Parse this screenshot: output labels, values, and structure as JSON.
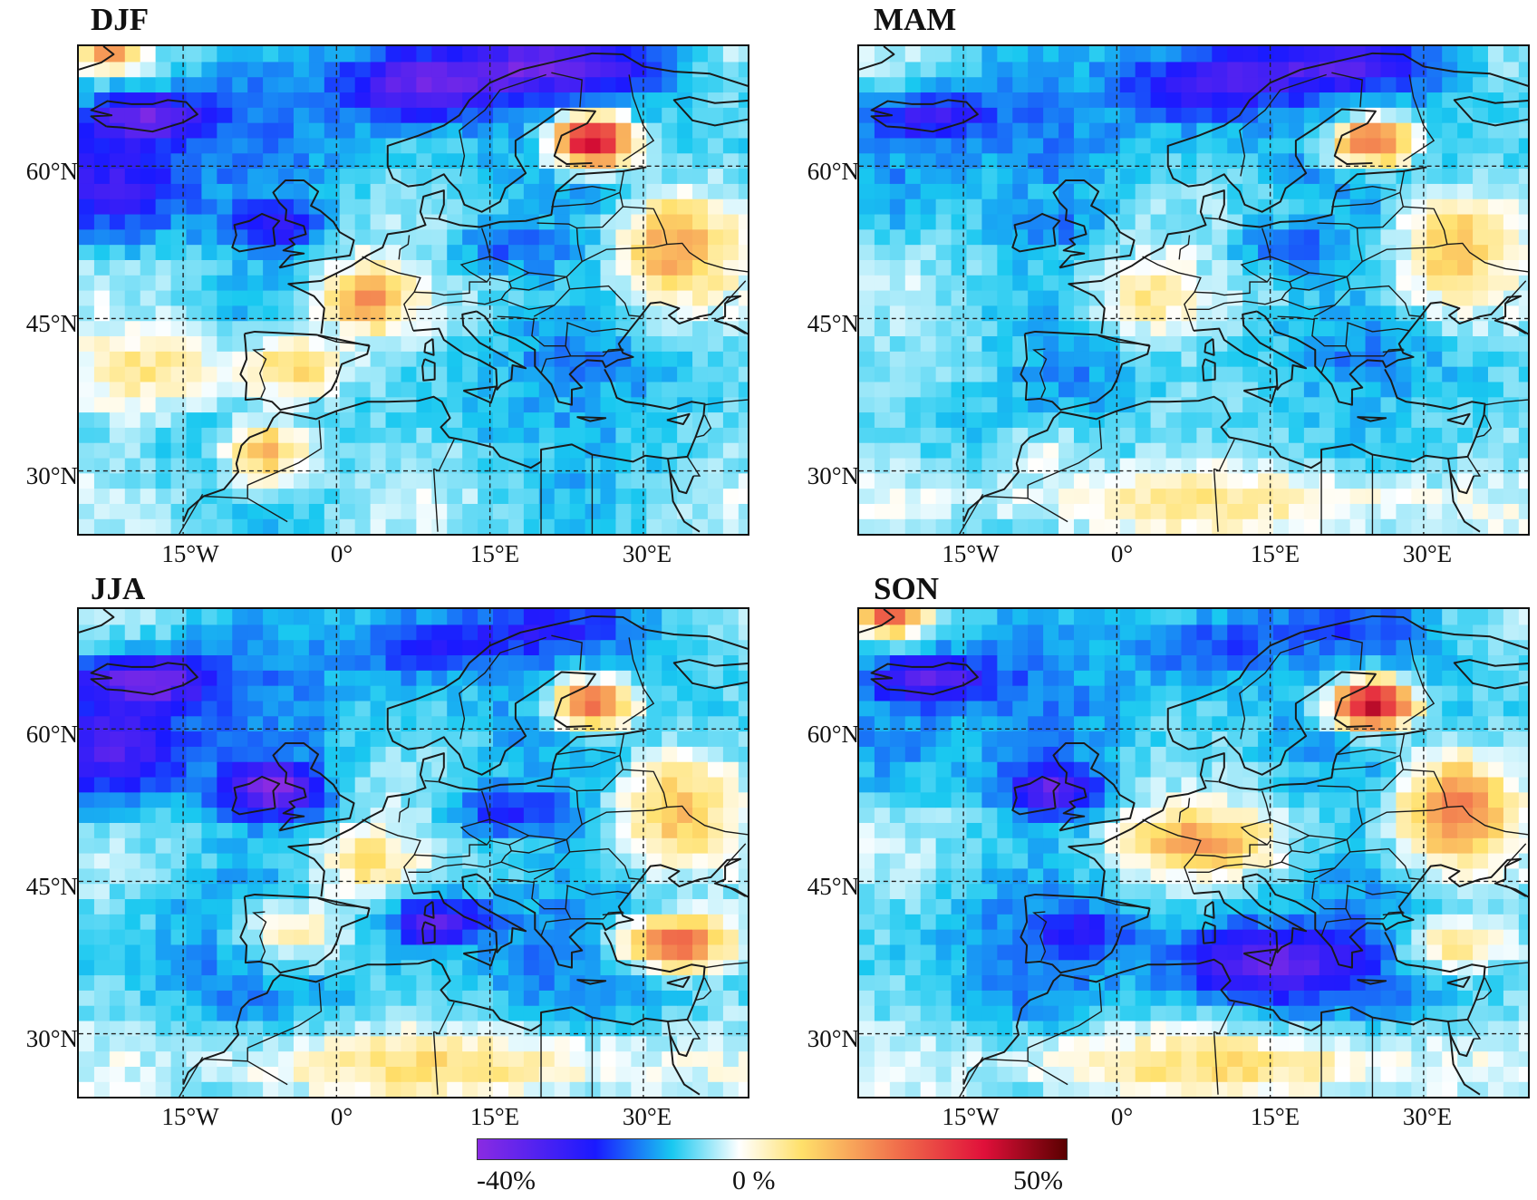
{
  "panels": [
    {
      "title": "DJF",
      "anomalies": [
        {
          "region": "north-sea-norway",
          "value": -30
        },
        {
          "region": "iceland",
          "value": -28
        },
        {
          "region": "north-atlantic-west",
          "value": -25
        },
        {
          "region": "ireland-uk",
          "value": -22
        },
        {
          "region": "finland",
          "value": 45
        },
        {
          "region": "russia-west",
          "value": 20
        },
        {
          "region": "france",
          "value": 22
        },
        {
          "region": "iberia",
          "value": 15
        },
        {
          "region": "morocco",
          "value": 18
        },
        {
          "region": "central-europe",
          "value": -15
        },
        {
          "region": "mediterranean",
          "value": -8
        },
        {
          "region": "subtropical-atlantic",
          "value": 10
        },
        {
          "region": "greenland-corner",
          "value": 20
        }
      ]
    },
    {
      "title": "MAM",
      "anomalies": [
        {
          "region": "north-sea-norway",
          "value": -25
        },
        {
          "region": "iceland",
          "value": -22
        },
        {
          "region": "north-atlantic-west",
          "value": -12
        },
        {
          "region": "ireland-uk",
          "value": -12
        },
        {
          "region": "finland",
          "value": 30
        },
        {
          "region": "russia-west",
          "value": 15
        },
        {
          "region": "france",
          "value": 10
        },
        {
          "region": "iberia",
          "value": -10
        },
        {
          "region": "morocco",
          "value": 2
        },
        {
          "region": "central-europe",
          "value": -15
        },
        {
          "region": "mediterranean",
          "value": -5
        },
        {
          "region": "subtropical-atlantic",
          "value": -3
        },
        {
          "region": "sahara",
          "value": 8
        }
      ]
    },
    {
      "title": "JJA",
      "anomalies": [
        {
          "region": "north-sea-norway",
          "value": -18
        },
        {
          "region": "iceland",
          "value": -30
        },
        {
          "region": "north-atlantic-west",
          "value": -28
        },
        {
          "region": "ireland-uk",
          "value": -35
        },
        {
          "region": "finland",
          "value": 30
        },
        {
          "region": "russia-west",
          "value": 15
        },
        {
          "region": "france",
          "value": 10
        },
        {
          "region": "iberia",
          "value": 8
        },
        {
          "region": "central-europe",
          "value": -20
        },
        {
          "region": "tyrrhenian",
          "value": -32
        },
        {
          "region": "turkey",
          "value": 30
        },
        {
          "region": "sahara",
          "value": 10
        }
      ]
    },
    {
      "title": "SON",
      "anomalies": [
        {
          "region": "north-sea-norway",
          "value": -15
        },
        {
          "region": "iceland",
          "value": -28
        },
        {
          "region": "north-atlantic-west",
          "value": -12
        },
        {
          "region": "ireland-uk",
          "value": -30
        },
        {
          "region": "finland",
          "value": 45
        },
        {
          "region": "russia-west",
          "value": 25
        },
        {
          "region": "france-germany",
          "value": 18
        },
        {
          "region": "iberia",
          "value": -20
        },
        {
          "region": "central-mediterranean",
          "value": -30
        },
        {
          "region": "turkey",
          "value": 12
        },
        {
          "region": "sahara",
          "value": 10
        },
        {
          "region": "greenland-corner",
          "value": 30
        }
      ]
    }
  ],
  "lat_ticks": [
    "60°N",
    "45°N",
    "30°N"
  ],
  "lon_ticks": [
    "15°W",
    "0°",
    "15°E",
    "30°E"
  ],
  "colorbar": {
    "min_label": "-40%",
    "mid_label": "0 %",
    "max_label": "50%",
    "colors": [
      "#8a2be2",
      "#1a1aff",
      "#19c8f0",
      "#ffffff",
      "#ffe06a",
      "#f06a4a",
      "#e0103a",
      "#5a0000"
    ]
  }
}
